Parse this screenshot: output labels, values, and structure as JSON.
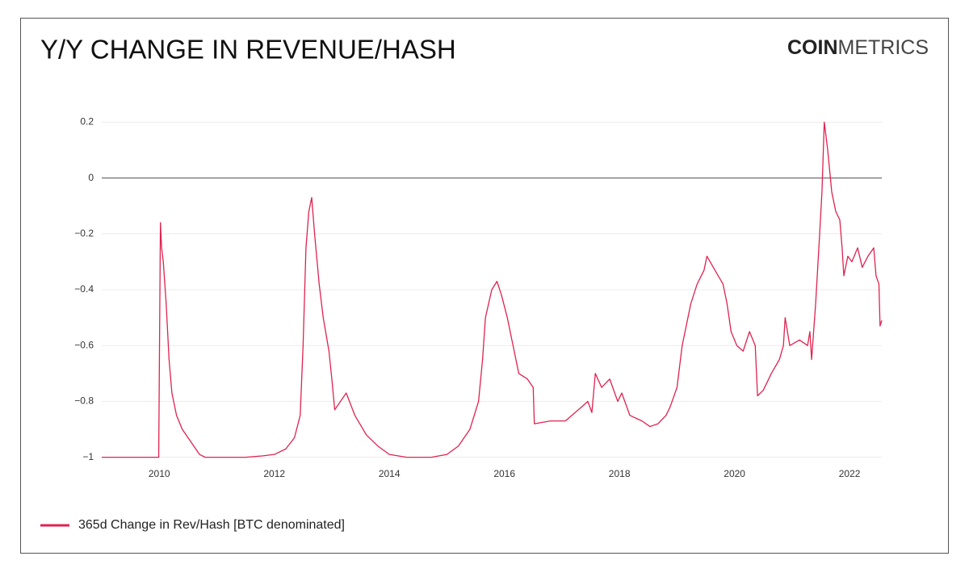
{
  "header": {
    "title": "Y/Y CHANGE IN REVENUE/HASH",
    "logo_bold": "COIN",
    "logo_light": "METRICS"
  },
  "chart_data": {
    "type": "line",
    "x": [
      2009.0,
      2009.5,
      2009.99,
      2010.02,
      2010.04,
      2010.07,
      2010.12,
      2010.17,
      2010.22,
      2010.3,
      2010.4,
      2010.5,
      2010.6,
      2010.7,
      2010.8,
      2011.2,
      2011.5,
      2011.8,
      2012.0,
      2012.2,
      2012.35,
      2012.45,
      2012.5,
      2012.55,
      2012.6,
      2012.65,
      2012.7,
      2012.78,
      2012.85,
      2012.95,
      2013.0,
      2013.05,
      2013.15,
      2013.25,
      2013.4,
      2013.6,
      2013.8,
      2014.0,
      2014.3,
      2014.73,
      2015.0,
      2015.2,
      2015.4,
      2015.55,
      2015.62,
      2015.67,
      2015.78,
      2015.87,
      2015.95,
      2016.05,
      2016.15,
      2016.25,
      2016.4,
      2016.5,
      2016.52,
      2016.8,
      2017.06,
      2017.34,
      2017.45,
      2017.52,
      2017.58,
      2017.69,
      2017.83,
      2017.97,
      2018.04,
      2018.18,
      2018.39,
      2018.53,
      2018.67,
      2018.81,
      2018.88,
      2019.0,
      2019.09,
      2019.24,
      2019.35,
      2019.47,
      2019.52,
      2019.66,
      2019.8,
      2019.87,
      2019.94,
      2020.04,
      2020.15,
      2020.26,
      2020.36,
      2020.4,
      2020.5,
      2020.64,
      2020.78,
      2020.85,
      2020.88,
      2020.96,
      2021.13,
      2021.27,
      2021.31,
      2021.34,
      2021.41,
      2021.48,
      2021.52,
      2021.56,
      2021.62,
      2021.69,
      2021.76,
      2021.83,
      2021.87,
      2021.9,
      2021.97,
      2022.04,
      2022.14,
      2022.22,
      2022.32,
      2022.42,
      2022.46,
      2022.51,
      2022.53,
      2022.56
    ],
    "series": [
      {
        "name": "365d Change in Rev/Hash [BTC denominated]",
        "color": "#e0224f",
        "values": [
          -1,
          -1,
          -1,
          -0.16,
          -0.25,
          -0.3,
          -0.45,
          -0.65,
          -0.77,
          -0.85,
          -0.9,
          -0.93,
          -0.96,
          -0.99,
          -1,
          -1,
          -1,
          -0.995,
          -0.99,
          -0.97,
          -0.93,
          -0.85,
          -0.6,
          -0.25,
          -0.12,
          -0.07,
          -0.2,
          -0.38,
          -0.5,
          -0.62,
          -0.72,
          -0.83,
          -0.8,
          -0.77,
          -0.85,
          -0.92,
          -0.96,
          -0.99,
          -1,
          -1,
          -0.99,
          -0.96,
          -0.9,
          -0.8,
          -0.65,
          -0.5,
          -0.4,
          -0.37,
          -0.42,
          -0.5,
          -0.6,
          -0.7,
          -0.72,
          -0.75,
          -0.88,
          -0.87,
          -0.87,
          -0.82,
          -0.8,
          -0.84,
          -0.7,
          -0.75,
          -0.72,
          -0.8,
          -0.77,
          -0.85,
          -0.87,
          -0.89,
          -0.88,
          -0.85,
          -0.82,
          -0.75,
          -0.6,
          -0.45,
          -0.38,
          -0.33,
          -0.28,
          -0.33,
          -0.38,
          -0.45,
          -0.55,
          -0.6,
          -0.62,
          -0.55,
          -0.6,
          -0.78,
          -0.76,
          -0.7,
          -0.65,
          -0.6,
          -0.5,
          -0.6,
          -0.58,
          -0.6,
          -0.55,
          -0.65,
          -0.45,
          -0.2,
          -0.05,
          0.2,
          0.1,
          -0.05,
          -0.12,
          -0.15,
          -0.25,
          -0.35,
          -0.28,
          -0.3,
          -0.25,
          -0.32,
          -0.28,
          -0.25,
          -0.35,
          -0.38,
          -0.53,
          -0.51
        ]
      }
    ],
    "xlim": [
      2009.0,
      2022.56
    ],
    "xticks": [
      2010,
      2012,
      2014,
      2016,
      2018,
      2020,
      2022
    ],
    "ylim": [
      -1.03,
      0.23
    ],
    "yticks": [
      {
        "value": -1,
        "label": "−1"
      },
      {
        "value": -0.8,
        "label": "−0.8"
      },
      {
        "value": -0.6,
        "label": "−0.6"
      },
      {
        "value": -0.4,
        "label": "−0.4"
      },
      {
        "value": -0.2,
        "label": "−0.2"
      },
      0,
      0.2
    ],
    "grid": true
  }
}
